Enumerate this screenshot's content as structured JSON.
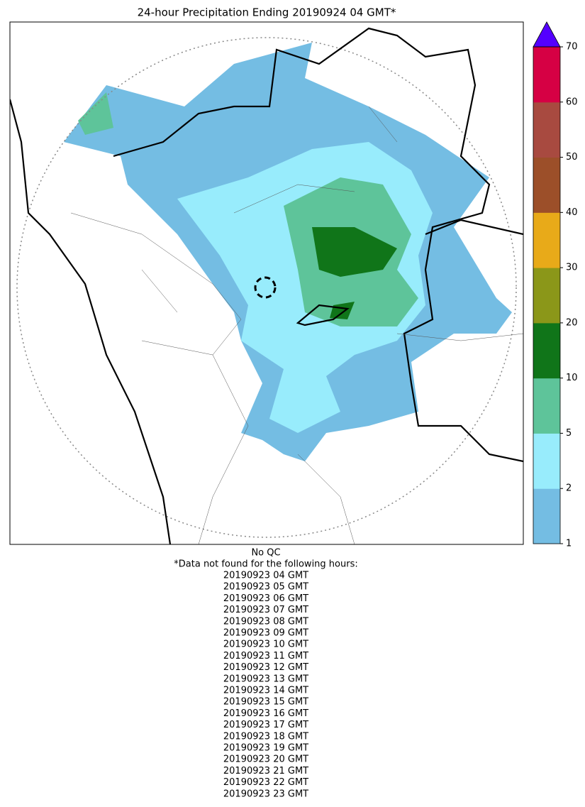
{
  "title": "24-hour Precipitation Ending 20190924 04 GMT*",
  "colorbar": {
    "ticks": [
      1,
      2,
      5,
      10,
      20,
      30,
      40,
      50,
      60,
      70
    ],
    "colors": [
      "#74bde3",
      "#98ecfc",
      "#5ec49a",
      "#107519",
      "#8b9719",
      "#e8aa19",
      "#9c4f29",
      "#a84a40",
      "#d60044"
    ],
    "extend_color": "#5400ff"
  },
  "footer": {
    "qc": "No QC",
    "note": "*Data not found for the following hours:",
    "hours": [
      "20190923 04 GMT",
      "20190923 05 GMT",
      "20190923 06 GMT",
      "20190923 07 GMT",
      "20190923 08 GMT",
      "20190923 09 GMT",
      "20190923 10 GMT",
      "20190923 11 GMT",
      "20190923 12 GMT",
      "20190923 13 GMT",
      "20190923 14 GMT",
      "20190923 15 GMT",
      "20190923 16 GMT",
      "20190923 17 GMT",
      "20190923 18 GMT",
      "20190923 19 GMT",
      "20190923 20 GMT",
      "20190923 21 GMT",
      "20190923 22 GMT",
      "20190923 23 GMT"
    ]
  }
}
